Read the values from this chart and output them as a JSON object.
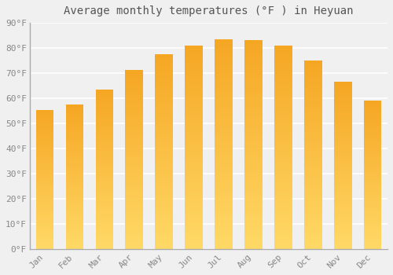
{
  "title": "Average monthly temperatures (°F ) in Heyuan",
  "months": [
    "Jan",
    "Feb",
    "Mar",
    "Apr",
    "May",
    "Jun",
    "Jul",
    "Aug",
    "Sep",
    "Oct",
    "Nov",
    "Dec"
  ],
  "values": [
    55.4,
    57.5,
    63.5,
    71.2,
    77.5,
    81.0,
    83.5,
    83.3,
    81.0,
    75.0,
    66.5,
    59.0
  ],
  "bar_color_top": "#F5A623",
  "bar_color_bottom": "#FFD966",
  "background_color": "#f0f0f0",
  "grid_color": "#ffffff",
  "ylim": [
    0,
    90
  ],
  "yticks": [
    0,
    10,
    20,
    30,
    40,
    50,
    60,
    70,
    80,
    90
  ],
  "ytick_labels": [
    "0°F",
    "10°F",
    "20°F",
    "30°F",
    "40°F",
    "50°F",
    "60°F",
    "70°F",
    "80°F",
    "90°F"
  ],
  "title_fontsize": 10,
  "tick_fontsize": 8,
  "tick_color": "#888888",
  "spine_color": "#aaaaaa",
  "bar_width": 0.6
}
